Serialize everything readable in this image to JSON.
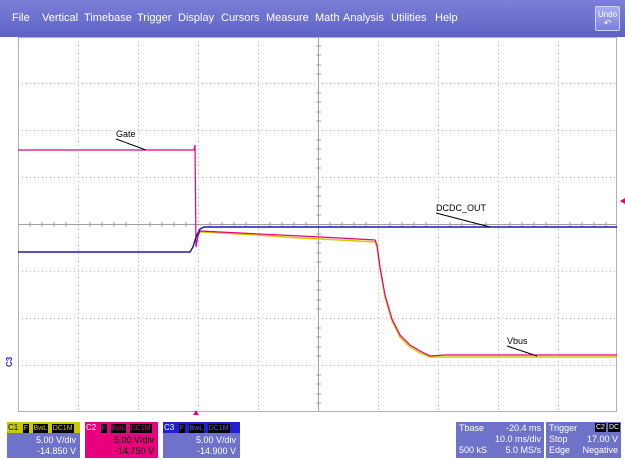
{
  "menu": {
    "items": [
      "File",
      "Vertical",
      "Timebase",
      "Trigger",
      "Display",
      "Cursors",
      "Measure",
      "Math",
      "Analysis",
      "Utilities",
      "Help"
    ],
    "undo_label": "Undo"
  },
  "waveform_labels": {
    "gate": "Gate",
    "dcdc_out": "DCDC_OUT",
    "vbus": "Vbus",
    "c3_marker": "C3"
  },
  "colors": {
    "menubar": "#6468c9",
    "grid": "#b8b8b8",
    "gate_trace": "#e8007c",
    "dcdc_trace": "#1a1ab0",
    "vbus_trace": "#d8c800",
    "c1_accent": "#c8c800",
    "c2_accent": "#e8007c",
    "c3_accent": "#2020d0"
  },
  "channels": [
    {
      "id": "C1",
      "tags": [
        "F",
        "BwL",
        "DC1M"
      ],
      "scale": "5.00 V/div",
      "offset": "-14.850 V"
    },
    {
      "id": "C2",
      "tags": [
        "F",
        "BwL",
        "DC1M"
      ],
      "scale": "5.00 V/div",
      "offset": "-14.750 V"
    },
    {
      "id": "C3",
      "tags": [
        "F",
        "BwL",
        "DC1M"
      ],
      "scale": "5.00 V/div",
      "offset": "-14.900 V"
    }
  ],
  "timebase": {
    "label": "Tbase",
    "delay": "-20.4 ms",
    "per_div": "10.0 ms/div",
    "samples": "500 kS",
    "rate": "5.0 MS/s"
  },
  "trigger": {
    "label": "Trigger",
    "source_tag": "C2",
    "coupling_tag": "DC",
    "mode": "Stop",
    "level": "17.00 V",
    "type": "Edge",
    "slope": "Negative"
  }
}
